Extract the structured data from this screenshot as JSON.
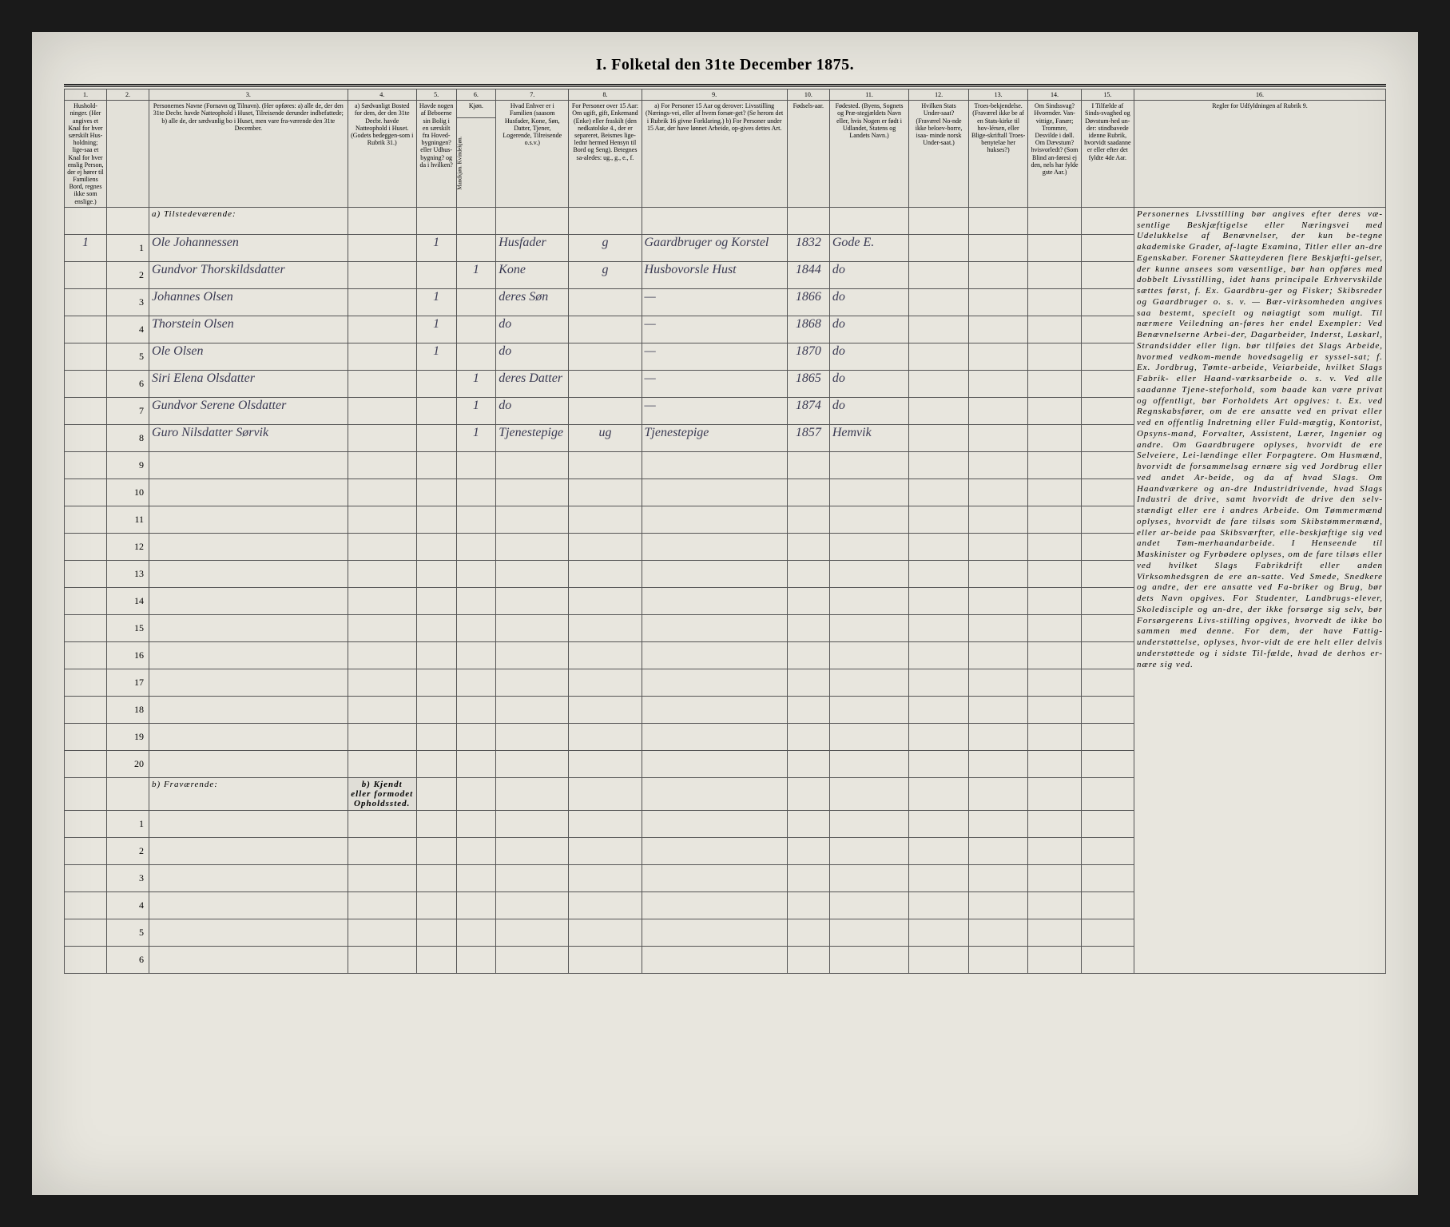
{
  "title": "I. Folketal den 31te December 1875.",
  "colnums": [
    "1.",
    "2.",
    "3.",
    "4.",
    "5.",
    "6.",
    "7.",
    "8.",
    "9.",
    "10.",
    "11.",
    "12.",
    "13.",
    "14.",
    "15.",
    "16."
  ],
  "headers": {
    "c1": "Hushold-\nninger.\n(Her angives et Knal for hver særskilt Hus-holdning; lige-saa et Knal for hver enslig Person, der ej hører til Familiens Bord, regnes ikke som enslige.)",
    "c2": "",
    "c3": "Personernes Navne (Fornavn og Tilnavn).\n(Her opføres:\na) alle de, der den 31te Decbr. havde Natteophold i Huset, Tilreisende derunder indbefattede;\nb) alle de, der sædvanlig bo i Huset, men vare fra-værende den 31te December.",
    "c4": "a) Sædvanligt Bosted for dem, der den 31te Decbr. havde Natteophold i Huset.\n(Godets bedeggen-som i Rubrik 31.)",
    "c5": "Havde nogen af Beboerne sin Bolig i en særskilt  fra Hoved-bygningen? eller Udhus-bygning? og da i hvilken?",
    "c56sub": "Kjøn.",
    "c5m": "Mandkjøn.",
    "c6m": "Kvindekjøn.",
    "c7": "Hvad Enhver er i Familien\n(saasom Husfader, Kone, Søn, Datter, Tjener, Logerende, Tilreisende o.s.v.)",
    "c8": "For Personer over 15 Aar: Om ugift, gift, Enkemand (Enke) eller fraskilt (den nedkatolske 4., der er separeret, Beismes lige-lednr hermed Hensyn til Bord og Seng). Betegnes sa-aledes: ug., g., e., f.",
    "c9": "a) For Personer 15 Aar og derover: Livsstilling (Nærings-vei, eller af hvem forsør-get? (Se herom det i Rubrik 16 givne Forklaring.)\nb) For Personer under 15 Aar, der have lønnet Arbeide, op-gives dettes Art.",
    "c10": "Fødsels-aar.",
    "c11": "Fødested.\n(Byens, Sognets og Præ-stegjældets Navn eller, hvis Nogen er født i Udlandet, Statens og Landets Navn.)",
    "c12": "Hvilken Stats Under-saat?\n(Fraværel No-nde ikke beloev-borre, isaa- minde norsk Under-saat.)",
    "c13": "Troes-bekjendelse.\n(Fraværel ikke be af en Stats-kirke til hov-lérsen, eller Blige-skriftall Troes-benytelae her hukses?)",
    "c14": "Om Sindssvag? Hvormder. Van-vittige, Fanær; Trommre, Desvilde i døll. Om Dævstum? hvisvorledt? (Som Blind an-føresi ej den, nels har fylde gste Aar.)",
    "c15": "I Tilfælde af Sinds-svaghed og Døvstum-hed un-der: stindbavede idenne Rubrik, hvorvidt saadanne er eller efter det fyldte 4de Aar.",
    "c16": "Regler for Udfyldningen\naf\nRubrik 9."
  },
  "section_a": "a) Tilstedeværende:",
  "section_b": "b) Fraværende:",
  "fravar_hdr": "b) Kjendt eller formodet Opholdssted.",
  "rows": [
    {
      "n": "1",
      "hh": "1",
      "name": "Ole Johannessen",
      "m": "1",
      "k": "",
      "rel": "Husfader",
      "civ": "g",
      "occ": "Gaardbruger og Korstel",
      "yr": "1832",
      "bp": "Gode E."
    },
    {
      "n": "2",
      "hh": "",
      "name": "Gundvor Thorskildsdatter",
      "m": "",
      "k": "1",
      "rel": "Kone",
      "civ": "g",
      "occ": "Husbovorsle Hust",
      "yr": "1844",
      "bp": "do"
    },
    {
      "n": "3",
      "hh": "",
      "name": "Johannes Olsen",
      "m": "1",
      "k": "",
      "rel": "deres Søn",
      "civ": "",
      "occ": "—",
      "yr": "1866",
      "bp": "do"
    },
    {
      "n": "4",
      "hh": "",
      "name": "Thorstein Olsen",
      "m": "1",
      "k": "",
      "rel": "do",
      "civ": "",
      "occ": "—",
      "yr": "1868",
      "bp": "do"
    },
    {
      "n": "5",
      "hh": "",
      "name": "Ole Olsen",
      "m": "1",
      "k": "",
      "rel": "do",
      "civ": "",
      "occ": "—",
      "yr": "1870",
      "bp": "do"
    },
    {
      "n": "6",
      "hh": "",
      "name": "Siri Elena Olsdatter",
      "m": "",
      "k": "1",
      "rel": "deres Datter",
      "civ": "",
      "occ": "—",
      "yr": "1865",
      "bp": "do"
    },
    {
      "n": "7",
      "hh": "",
      "name": "Gundvor Serene Olsdatter",
      "m": "",
      "k": "1",
      "rel": "do",
      "civ": "",
      "occ": "—",
      "yr": "1874",
      "bp": "do"
    },
    {
      "n": "8",
      "hh": "",
      "name": "Guro Nilsdatter Sørvik",
      "m": "",
      "k": "1",
      "rel": "Tjenestepige",
      "civ": "ug",
      "occ": "Tjenestepige",
      "yr": "1857",
      "bp": "Hemvik"
    }
  ],
  "empty_a": [
    "9",
    "10",
    "11",
    "12",
    "13",
    "14",
    "15",
    "16",
    "17",
    "18",
    "19",
    "20"
  ],
  "empty_b": [
    "1",
    "2",
    "3",
    "4",
    "5",
    "6"
  ],
  "sidetext": "Personernes Livsstilling bør angives efter deres væ-sentlige Beskjæftigelse eller Næringsvei med Udelukkelse af Benævnelser, der kun be-tegne akademiske Grader, af-lagte Examina, Titler eller an-dre Egenskaber. Forener Skatteyderen flere Beskjæfti-gelser, der kunne ansees som væsentlige, bør han opføres med dobbelt Livsstilling, idet hans principale Erhvervskilde sættes først, f. Ex. Gaardbru-ger og Fisker; Skibsreder og Gaardbruger o. s. v. — Bær-virksomheden angives saa bestemt, specielt og nøiagtigt som muligt.\nTil nærmere Veiledning an-føres her endel Exempler:\nVed Benævnelserne Arbei-der, Dagarbeider, Inderst, Løskarl, Strandsidder eller lign. bør tilføies det Slags Arbeide, hvormed vedkom-mende hovedsagelig er syssel-sat; f. Ex. Jordbrug, Tømte-arbeide, Veiarbeide, hvilket Slags Fabrik- eller Haand-værksarbeide o. s. v.\nVed alle saadanne Tjene-steforhold, som baade kan være privat og offentligt, bør Forholdets Art opgives: t. Ex. ved Regnskabsfører, om de ere ansatte ved en privat eller ved en offentlig Indretning eller Fuld-mægtig, Kontorist, Opsyns-mand, Forvalter, Assistent, Lærer, Ingeniør og andre.\nOm Gaardbrugere oplyses, hvorvidt de ere Selveiere, Lei-lændinge eller Forpagtere.\nOm Husmænd, hvorvidt de forsammelsag ernære sig ved Jordbrug eller ved andet Ar-beide, og da af hvad Slags.\nOm Haandværkere og an-dre Industridrivende, hvad Slags Industri de drive, samt hvorvidt de drive den selv-stændigt eller ere i andres Arbeide.\nOm Tømmermænd oplyses, hvorvidt de fare tilsøs som Skibstømmermænd, eller ar-beide paa Skibsværfter, elle-beskjæftige sig ved andet Tøm-merhaandarbeide.\nI Henseende til Maskinister og Fyrbødere oplyses, om de fare tilsøs eller ved hvilket Slags Fabrikdrift eller anden Virksomhedsgren de ere an-satte.\nVed Smede, Snedkere og andre, der ere ansatte ved Fa-briker og Brug, bør dets Navn opgives.\nFor Studenter, Landbrugs-elever, Skoledisciple og an-dre, der ikke forsørge sig selv, bør Forsørgerens Livs-stilling opgives, hvorvedt de ikke bo sammen med denne.\nFor dem, der have Fattig-understøttelse, oplyses, hvor-vidt de ere helt eller delvis understøttede og i sidste Til-fælde, hvad de derhos er-nære sig ved.",
  "colors": {
    "paper": "#e8e6de",
    "ink": "#2a2a2a",
    "hand": "#3a3a52"
  }
}
